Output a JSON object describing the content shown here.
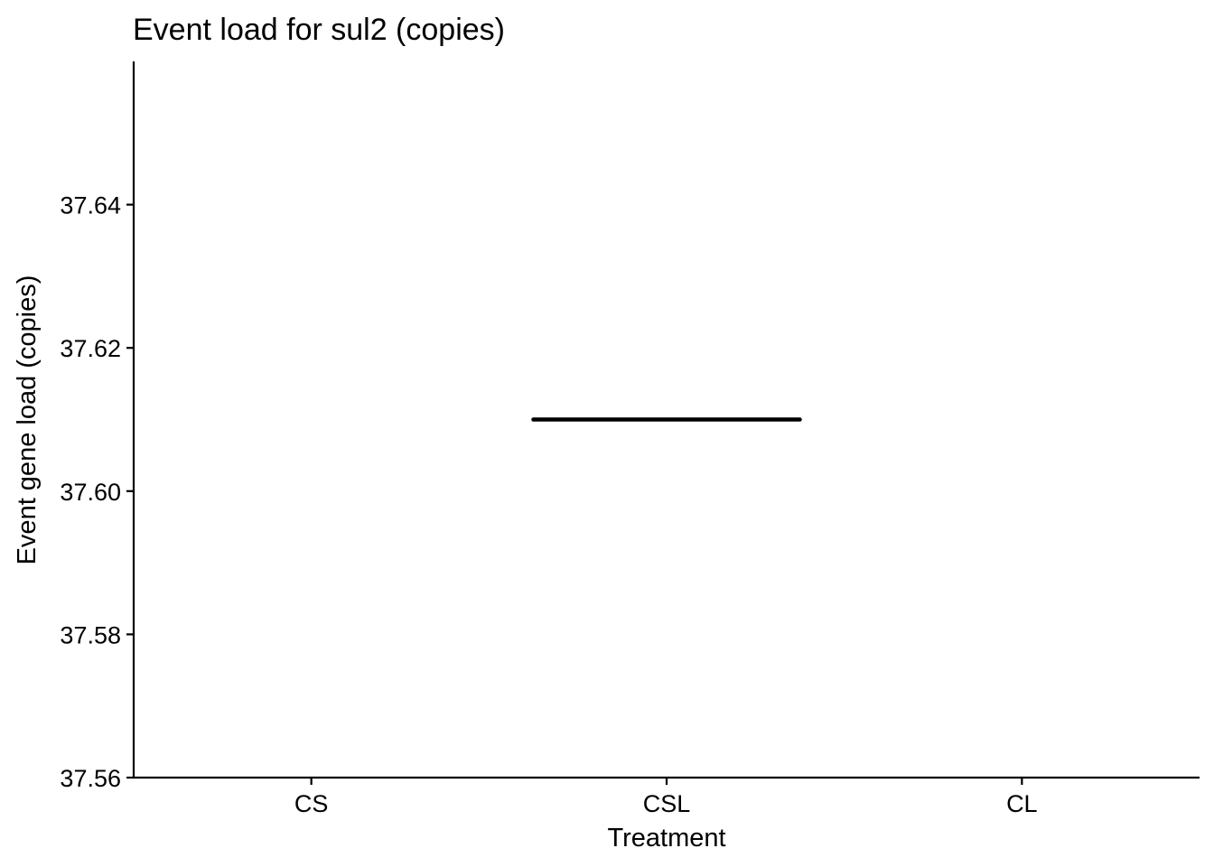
{
  "chart_data": {
    "type": "box",
    "title": "Event load for sul2 (copies)",
    "xlabel": "Treatment",
    "ylabel": "Event gene load (copies)",
    "categories": [
      "CS",
      "CSL",
      "CL"
    ],
    "ylim": [
      37.56,
      37.66
    ],
    "yticks": [
      37.56,
      37.58,
      37.6,
      37.62,
      37.64
    ],
    "ytick_labels": [
      "37.56",
      "37.58",
      "37.60",
      "37.62",
      "37.64"
    ],
    "boxes": [
      {
        "category": "CSL",
        "median": 37.61,
        "q1": 37.61,
        "q3": 37.61,
        "min": 37.61,
        "max": 37.61
      }
    ],
    "grid": false,
    "legend": "none"
  }
}
